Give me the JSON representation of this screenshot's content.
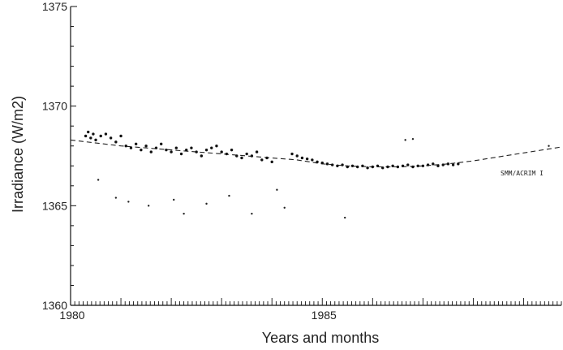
{
  "chart_data": {
    "type": "scatter",
    "xlabel": "Years and months",
    "ylabel": "Irradiance (W/m2)",
    "xlim": [
      1980.0,
      1989.75
    ],
    "ylim": [
      1360,
      1375
    ],
    "x_ticks": [
      {
        "value": 1980,
        "label": "1980"
      },
      {
        "value": 1985,
        "label": "1985"
      }
    ],
    "y_ticks": [
      {
        "value": 1360,
        "label": "1360"
      },
      {
        "value": 1365,
        "label": "1365"
      },
      {
        "value": 1370,
        "label": "1370"
      },
      {
        "value": 1375,
        "label": "1375"
      }
    ],
    "annotation": {
      "text": "SMM/ACRIM I",
      "x": 1988.4,
      "y": 1366.6
    },
    "trend_line": {
      "name": "SMM/ACRIM I",
      "style": "dashed",
      "x": [
        1980.0,
        1981.0,
        1982.0,
        1983.0,
        1984.0,
        1984.5,
        1985.0,
        1985.5,
        1986.0,
        1986.5,
        1987.0,
        1987.5,
        1988.0,
        1988.5,
        1989.0,
        1989.75
      ],
      "y": [
        1368.3,
        1368.0,
        1367.8,
        1367.6,
        1367.4,
        1367.3,
        1367.1,
        1367.0,
        1366.95,
        1366.95,
        1367.0,
        1367.1,
        1367.25,
        1367.45,
        1367.65,
        1367.95
      ]
    },
    "series": [
      {
        "x": [
          1980.3,
          1980.35,
          1980.4,
          1980.45,
          1980.5,
          1980.6,
          1980.7,
          1980.8,
          1980.9,
          1981.0,
          1981.1,
          1981.2,
          1981.3,
          1981.4,
          1981.5,
          1981.6,
          1981.7,
          1981.8,
          1981.9,
          1982.0,
          1982.1,
          1982.2,
          1982.3,
          1982.4,
          1982.5,
          1982.6,
          1982.7,
          1982.8,
          1982.9,
          1983.0,
          1983.1,
          1983.2,
          1983.3,
          1983.4,
          1983.5,
          1983.6,
          1983.7,
          1983.8,
          1983.9,
          1984.0
        ],
        "y": [
          1368.5,
          1368.7,
          1368.4,
          1368.6,
          1368.3,
          1368.5,
          1368.6,
          1368.4,
          1368.2,
          1368.5,
          1368.0,
          1367.9,
          1368.1,
          1367.8,
          1368.0,
          1367.7,
          1367.9,
          1368.1,
          1367.8,
          1367.7,
          1367.9,
          1367.6,
          1367.8,
          1367.9,
          1367.7,
          1367.5,
          1367.8,
          1367.9,
          1368.0,
          1367.7,
          1367.6,
          1367.8,
          1367.5,
          1367.4,
          1367.6,
          1367.5,
          1367.7,
          1367.3,
          1367.4,
          1367.2
        ]
      },
      {
        "x": [
          1984.4,
          1984.5,
          1984.6,
          1984.7,
          1984.8,
          1984.9,
          1985.0,
          1985.1,
          1985.2,
          1985.3,
          1985.4,
          1985.5,
          1985.6,
          1985.7,
          1985.8,
          1985.9,
          1986.0,
          1986.1,
          1986.2,
          1986.3,
          1986.4,
          1986.5,
          1986.6,
          1986.7,
          1986.8,
          1986.9,
          1987.0,
          1987.1,
          1987.2,
          1987.3,
          1987.4,
          1987.5,
          1987.6,
          1987.7
        ],
        "y": [
          1367.6,
          1367.5,
          1367.4,
          1367.35,
          1367.3,
          1367.2,
          1367.15,
          1367.1,
          1367.05,
          1367.0,
          1367.05,
          1366.95,
          1367.0,
          1366.95,
          1367.0,
          1366.9,
          1366.95,
          1367.0,
          1366.9,
          1366.95,
          1367.0,
          1366.95,
          1367.0,
          1367.05,
          1366.95,
          1367.0,
          1367.0,
          1367.05,
          1367.1,
          1367.0,
          1367.05,
          1367.1,
          1367.05,
          1367.1
        ]
      }
    ],
    "outliers": {
      "x": [
        1980.55,
        1980.9,
        1981.15,
        1981.55,
        1982.05,
        1982.25,
        1982.7,
        1983.15,
        1983.6,
        1984.1,
        1984.25,
        1985.45,
        1986.65,
        1986.8,
        1989.5
      ],
      "y": [
        1366.3,
        1365.4,
        1365.2,
        1365.0,
        1365.3,
        1364.6,
        1365.1,
        1365.5,
        1364.6,
        1365.8,
        1364.9,
        1364.4,
        1368.3,
        1368.35,
        1368.0
      ]
    },
    "grid": false
  }
}
